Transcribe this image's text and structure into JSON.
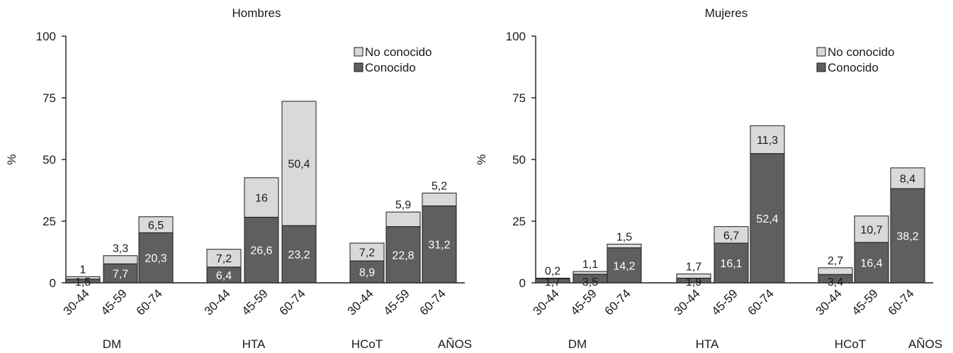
{
  "colors": {
    "conocido": "#5f5f5f",
    "no_conocido": "#d9d9d9",
    "outline": "#1a1a1a",
    "label_light": "#ffffff",
    "label_dark": "#1a1a1a"
  },
  "chart_data": [
    {
      "type": "bar",
      "stacked": true,
      "title": "Hombres",
      "ylabel": "%",
      "ylim": [
        0,
        100
      ],
      "yticks": [
        "0",
        "25",
        "50",
        "75",
        "100"
      ],
      "grid": false,
      "legend_position": "top-right",
      "groups": [
        "DM",
        "HTA",
        "HCoT"
      ],
      "years_label": "AÑOS",
      "categories": [
        "30-44",
        "45-59",
        "60-74",
        "30-44",
        "45-59",
        "60-74",
        "30-44",
        "45-59",
        "60-74"
      ],
      "series": [
        {
          "name": "Conocido",
          "values": [
            1.5,
            7.7,
            20.3,
            6.4,
            26.6,
            23.2,
            8.9,
            22.8,
            31.2
          ],
          "labels": [
            "1,5",
            "7,7",
            "20,3",
            "6,4",
            "26,6",
            "23,2",
            "8,9",
            "22,8",
            "31,2"
          ]
        },
        {
          "name": "No conocido",
          "values": [
            1,
            3.3,
            6.5,
            7.2,
            16,
            50.4,
            7.2,
            5.9,
            5.2
          ],
          "labels": [
            "1",
            "3,3",
            "6,5",
            "7,2",
            "16",
            "50,4",
            "7,2",
            "5,9",
            "5,2"
          ]
        }
      ]
    },
    {
      "type": "bar",
      "stacked": true,
      "title": "Mujeres",
      "ylabel": "%",
      "ylim": [
        0,
        100
      ],
      "yticks": [
        "0",
        "25",
        "50",
        "75",
        "100"
      ],
      "grid": false,
      "legend_position": "top-right",
      "groups": [
        "DM",
        "HTA",
        "HCoT"
      ],
      "years_label": "AÑOS",
      "categories": [
        "30-44",
        "45-59",
        "60-74",
        "30-44",
        "45-59",
        "60-74",
        "30-44",
        "45-59",
        "60-74"
      ],
      "series": [
        {
          "name": "Conocido",
          "values": [
            1.7,
            3.5,
            14.2,
            1.9,
            16.1,
            52.4,
            3.4,
            16.4,
            38.2
          ],
          "labels": [
            "1,7",
            "3,5",
            "14,2",
            "1,9",
            "16,1",
            "52,4",
            "3,4",
            "16,4",
            "38,2"
          ]
        },
        {
          "name": "No conocido",
          "values": [
            0.2,
            1.1,
            1.5,
            1.7,
            6.7,
            11.3,
            2.7,
            10.7,
            8.4
          ],
          "labels": [
            "0,2",
            "1,1",
            "1,5",
            "1,7",
            "6,7",
            "11,3",
            "2,7",
            "10,7",
            "8,4"
          ]
        }
      ]
    }
  ]
}
